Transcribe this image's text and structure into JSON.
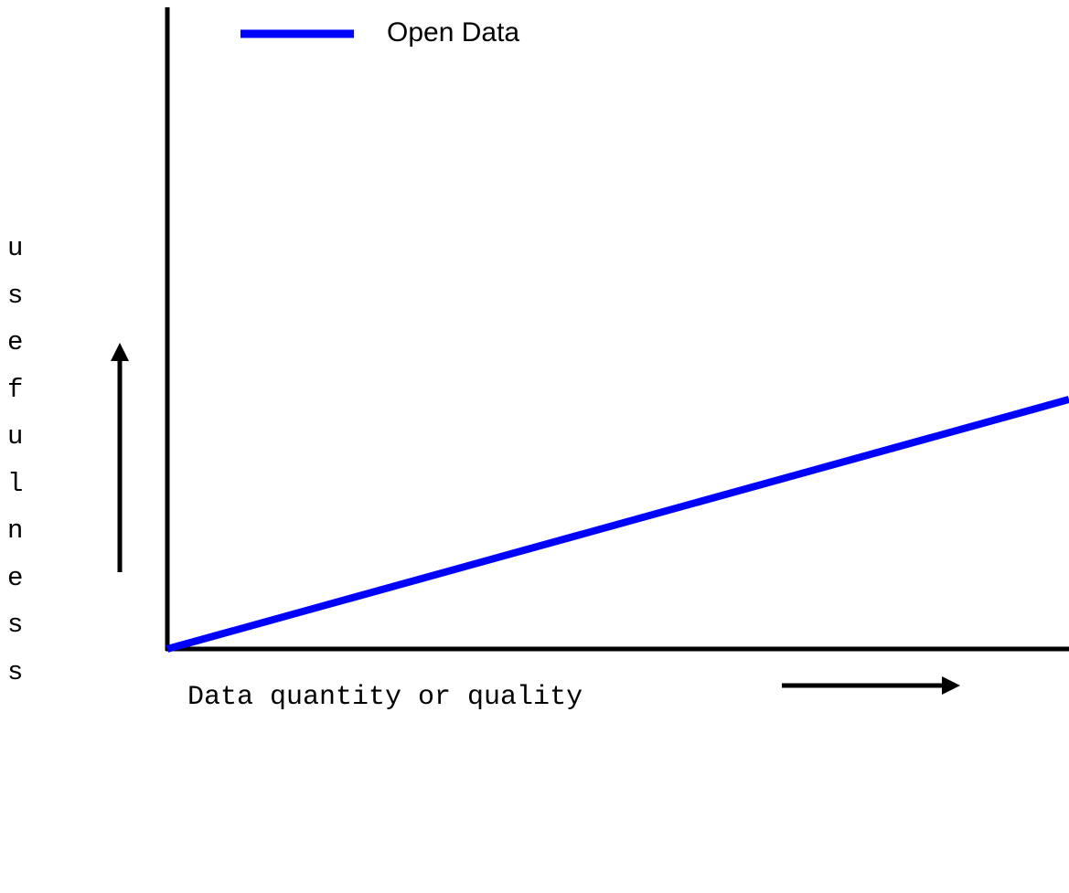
{
  "chart_data": {
    "type": "line",
    "x_label": "Data quantity or quality",
    "y_label": "usefulness",
    "x": [
      0,
      100
    ],
    "series": [
      {
        "name": "Open Data",
        "color": "#0000ff",
        "values": [
          0,
          39
        ]
      }
    ],
    "xlim": [
      0,
      100
    ],
    "ylim": [
      0,
      100
    ],
    "legend": "top-left"
  }
}
